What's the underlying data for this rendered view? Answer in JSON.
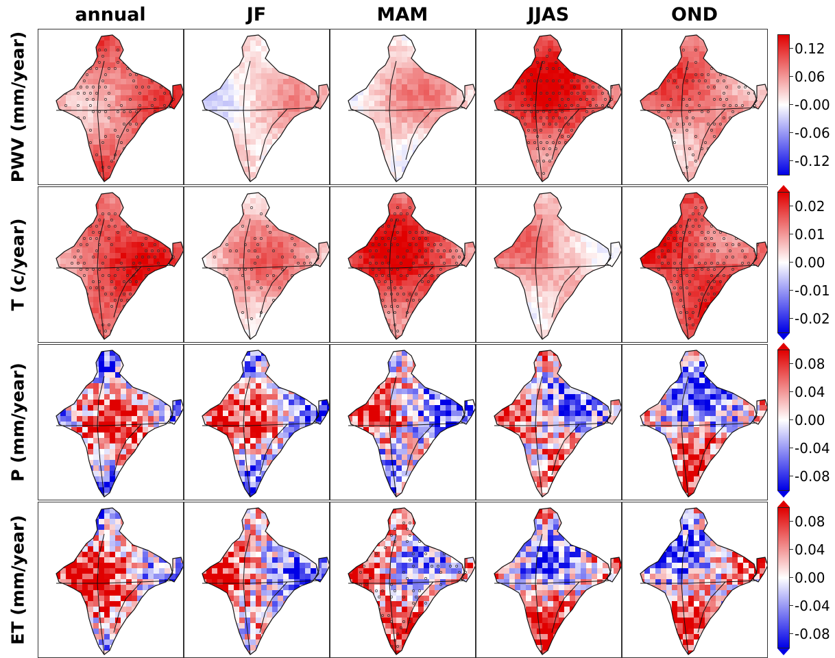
{
  "chart_data": {
    "type": "heatmap",
    "columns": [
      "annual",
      "JF",
      "MAM",
      "JJAS",
      "OND"
    ],
    "rows": [
      {
        "label": "PWV (mm/year)",
        "ticks": [
          "0.12",
          "0.06",
          "-0.00",
          "-0.06",
          "-0.12"
        ],
        "vmin": -0.15,
        "vmax": 0.15,
        "extend": "none",
        "panel_means": [
          0.08,
          0.02,
          0.03,
          0.11,
          0.07
        ]
      },
      {
        "label": "T (c/year)",
        "ticks": [
          "0.02",
          "0.01",
          "0.00",
          "-0.01",
          "-0.02"
        ],
        "vmin": -0.025,
        "vmax": 0.025,
        "extend": "both",
        "panel_means": [
          0.016,
          0.008,
          0.018,
          0.007,
          0.018
        ]
      },
      {
        "label": "P (mm/year)",
        "ticks": [
          "0.08",
          "0.04",
          "0.00",
          "-0.04",
          "-0.08"
        ],
        "vmin": -0.1,
        "vmax": 0.1,
        "extend": "both",
        "panel_means": [
          0.005,
          0.002,
          0.003,
          0.02,
          0.002
        ]
      },
      {
        "label": "ET (mm/year)",
        "ticks": [
          "0.08",
          "0.04",
          "0.00",
          "-0.04",
          "-0.08"
        ],
        "vmin": -0.1,
        "vmax": 0.1,
        "extend": "both",
        "panel_means": [
          0.03,
          0.015,
          0.04,
          0.02,
          0.01
        ]
      }
    ],
    "colormap": {
      "low": "#0000e6",
      "mid": "#ffffff",
      "high": "#e00000"
    }
  }
}
